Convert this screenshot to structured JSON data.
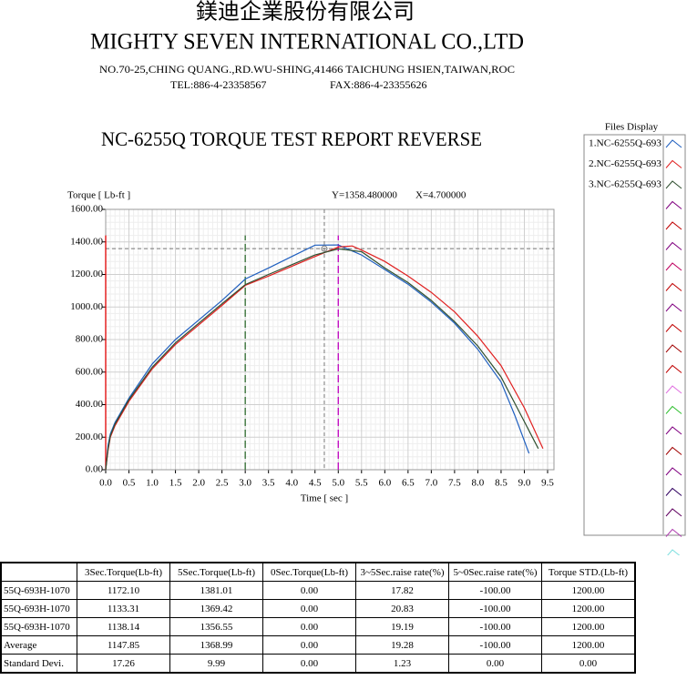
{
  "header": {
    "company_cn": "鎂迪企業股份有限公司",
    "company_en": "MIGHTY SEVEN INTERNATIONAL CO.,LTD",
    "address": "NO.70-25,CHING QUANG.,RD.WU-SHING,41466 TAICHUNG HSIEN,TAIWAN,ROC",
    "tel": "TEL:886-4-23358567",
    "fax": "FAX:886-4-23355626"
  },
  "chart_data": {
    "type": "line",
    "title": "NC-6255Q TORQUE TEST REPORT REVERSE",
    "y_label": "Torque [ Lb-ft ]",
    "x_label": "Time [ sec ]",
    "cursor": {
      "y": {
        "value": 1358.48,
        "label": "Y=1358.480000"
      },
      "x": {
        "value": 4.7,
        "label": "X=4.700000"
      }
    },
    "xlim": [
      0,
      9.5
    ],
    "xticks": [
      {
        "value": 0,
        "label": "0.0"
      },
      {
        "value": 0.5,
        "label": "0.5"
      },
      {
        "value": 1,
        "label": "1.0"
      },
      {
        "value": 1.5,
        "label": "1.5"
      },
      {
        "value": 2,
        "label": "2.0"
      },
      {
        "value": 2.5,
        "label": "2.5"
      },
      {
        "value": 3,
        "label": "3.0"
      },
      {
        "value": 3.5,
        "label": "3.5"
      },
      {
        "value": 4,
        "label": "4.0"
      },
      {
        "value": 4.5,
        "label": "4.5"
      },
      {
        "value": 5,
        "label": "5.0"
      },
      {
        "value": 5.5,
        "label": "5.5"
      },
      {
        "value": 6,
        "label": "6.0"
      },
      {
        "value": 6.5,
        "label": "6.5"
      },
      {
        "value": 7,
        "label": "7.0"
      },
      {
        "value": 7.5,
        "label": "7.5"
      },
      {
        "value": 8,
        "label": "8.0"
      },
      {
        "value": 8.5,
        "label": "8.5"
      },
      {
        "value": 9,
        "label": "9.0"
      },
      {
        "value": 9.5,
        "label": "9.5"
      }
    ],
    "ylim": [
      0,
      1600
    ],
    "yticks": [
      {
        "value": 0,
        "label": "0.00"
      },
      {
        "value": 200,
        "label": "200.00"
      },
      {
        "value": 400,
        "label": "400.00"
      },
      {
        "value": 600,
        "label": "600.00"
      },
      {
        "value": 800,
        "label": "800.00"
      },
      {
        "value": 1000,
        "label": "1000.00"
      },
      {
        "value": 1200,
        "label": "1200.00"
      },
      {
        "value": 1400,
        "label": "1400.00"
      },
      {
        "value": 1600,
        "label": "1600.00"
      }
    ],
    "grid": true,
    "markers": [
      {
        "x": 0,
        "color": "#e00000"
      },
      {
        "x": 3,
        "color": "#2e6b2e"
      },
      {
        "x": 5,
        "color": "#c000c0"
      }
    ],
    "legend_title": "Files Display",
    "series": [
      {
        "name": "1.NC-6255Q-693",
        "color": "#1f5fbf",
        "x": [
          0,
          0.05,
          0.1,
          0.2,
          0.5,
          1,
          1.5,
          2,
          2.5,
          3,
          3.5,
          4,
          4.5,
          5,
          5.5,
          6,
          6.5,
          7,
          7.5,
          8,
          8.5,
          8.8,
          9.1
        ],
        "values": [
          0,
          150,
          220,
          290,
          440,
          650,
          800,
          920,
          1040,
          1172,
          1240,
          1310,
          1380,
          1381,
          1320,
          1230,
          1140,
          1030,
          900,
          740,
          540,
          330,
          100
        ]
      },
      {
        "name": "2.NC-6255Q-693",
        "color": "#e02020",
        "x": [
          0,
          0.05,
          0.1,
          0.2,
          0.5,
          1,
          1.5,
          2,
          2.5,
          3,
          3.5,
          4,
          4.5,
          5,
          5.3,
          5.5,
          6,
          6.5,
          7,
          7.5,
          8,
          8.5,
          9,
          9.4
        ],
        "values": [
          0,
          120,
          200,
          270,
          420,
          620,
          770,
          890,
          1010,
          1133,
          1190,
          1250,
          1310,
          1369,
          1375,
          1350,
          1280,
          1190,
          1090,
          970,
          820,
          640,
          380,
          130
        ]
      },
      {
        "name": "3.NC-6255Q-693",
        "color": "#2f4f2f",
        "x": [
          0,
          0.05,
          0.1,
          0.2,
          0.5,
          1,
          1.5,
          2,
          2.5,
          3,
          3.5,
          4,
          4.5,
          5,
          5.5,
          6,
          6.5,
          7,
          7.5,
          8,
          8.5,
          8.9,
          9.3
        ],
        "values": [
          0,
          130,
          210,
          280,
          430,
          630,
          780,
          900,
          1020,
          1138,
          1200,
          1260,
          1320,
          1357,
          1340,
          1240,
          1150,
          1040,
          910,
          760,
          570,
          350,
          130
        ]
      }
    ]
  },
  "table": {
    "header": [
      "3Sec.Torque(Lb-ft)",
      "5Sec.Torque(Lb-ft)",
      "0Sec.Torque(Lb-ft)",
      "3~5Sec.raise rate(%)",
      "5~0Sec.raise rate(%)",
      "Torque STD.(Lb-ft)"
    ],
    "rows": [
      [
        "55Q-693H-1070",
        "1172.10",
        "1381.01",
        "0.00",
        "17.82",
        "-100.00",
        "1200.00"
      ],
      [
        "55Q-693H-1070",
        "1133.31",
        "1369.42",
        "0.00",
        "20.83",
        "-100.00",
        "1200.00"
      ],
      [
        "55Q-693H-1070",
        "1138.14",
        "1356.55",
        "0.00",
        "19.19",
        "-100.00",
        "1200.00"
      ],
      [
        "Average",
        "1147.85",
        "1368.99",
        "0.00",
        "19.28",
        "-100.00",
        "1200.00"
      ],
      [
        "Standard Devi.",
        "17.26",
        "9.99",
        "0.00",
        "1.23",
        "0.00",
        "0.00"
      ]
    ]
  }
}
